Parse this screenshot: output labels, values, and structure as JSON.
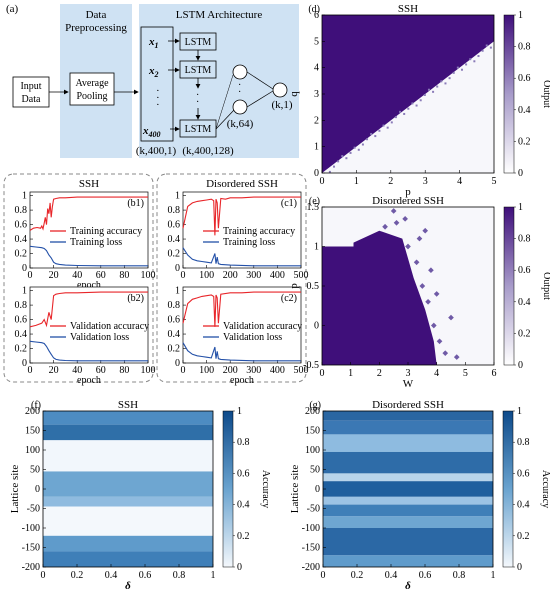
{
  "panel_a": {
    "tag": "(a)",
    "input_label": "Input Data",
    "input_line1": "Input",
    "input_line2": "Data",
    "prep_title_line1": "Data",
    "prep_title_line2": "Preprocessing",
    "pool_line1": "Average",
    "pool_line2": "Pooling",
    "lstm_title": "LSTM Architecture",
    "x_labels": [
      "x1",
      "x2",
      "x400"
    ],
    "lstm_label": "LSTM",
    "dim_in": "(k,400,1)",
    "dim_lstm": "(k,400,128)",
    "dim_64": "(k,64)",
    "dim_out": "(k,1)"
  },
  "colors": {
    "panel_bg": "#cfe2f3",
    "train_acc": "#e8262a",
    "train_loss": "#2451a8",
    "purple": "#3f0f7a",
    "blue": "#2f6fa8"
  },
  "chart_data": [
    {
      "id": "b1",
      "type": "line",
      "tag": "(b1)",
      "group_title": "SSH",
      "xlim": [
        0,
        100
      ],
      "ylim": [
        0,
        1.05
      ],
      "xticks": [
        0,
        20,
        40,
        60,
        80,
        100
      ],
      "yticks": [
        0,
        0.2,
        0.4,
        0.6,
        0.8,
        1
      ],
      "xlabel": "epoch",
      "series": [
        {
          "name": "Training accuracy",
          "color": "#e8262a",
          "x": [
            0,
            3,
            6,
            9,
            10,
            11,
            12,
            13,
            14,
            15,
            16,
            17,
            18,
            19,
            20,
            22,
            25,
            30,
            40,
            60,
            80,
            100
          ],
          "y": [
            0.52,
            0.55,
            0.56,
            0.55,
            0.58,
            0.54,
            0.62,
            0.7,
            0.6,
            0.82,
            0.75,
            0.9,
            0.7,
            0.85,
            0.95,
            0.96,
            0.97,
            0.97,
            0.98,
            0.98,
            0.98,
            0.98
          ]
        },
        {
          "name": "Training loss",
          "color": "#2451a8",
          "x": [
            0,
            5,
            10,
            12,
            14,
            16,
            18,
            20,
            22,
            25,
            30,
            40,
            60,
            80,
            100
          ],
          "y": [
            0.3,
            0.29,
            0.28,
            0.27,
            0.24,
            0.18,
            0.14,
            0.08,
            0.06,
            0.05,
            0.04,
            0.035,
            0.03,
            0.03,
            0.03
          ]
        }
      ]
    },
    {
      "id": "c1",
      "type": "line",
      "tag": "(c1)",
      "group_title": "Disordered SSH",
      "xlim": [
        0,
        500
      ],
      "ylim": [
        0,
        1.05
      ],
      "xticks": [
        0,
        100,
        200,
        300,
        400,
        500
      ],
      "yticks": [
        0,
        0.2,
        0.4,
        0.6,
        0.8,
        1
      ],
      "xlabel": "",
      "series": [
        {
          "name": "Training accuracy",
          "color": "#e8262a",
          "x": [
            0,
            20,
            40,
            60,
            80,
            100,
            120,
            130,
            135,
            140,
            145,
            150,
            160,
            180,
            200,
            250,
            300,
            350,
            400,
            450,
            500
          ],
          "y": [
            0.55,
            0.85,
            0.9,
            0.92,
            0.93,
            0.94,
            0.95,
            0.93,
            0.45,
            0.95,
            0.9,
            0.55,
            0.96,
            0.95,
            0.97,
            0.97,
            0.98,
            0.98,
            0.98,
            0.98,
            0.98
          ]
        },
        {
          "name": "Training loss",
          "color": "#2451a8",
          "x": [
            0,
            20,
            40,
            60,
            80,
            100,
            120,
            135,
            140,
            145,
            150,
            160,
            200,
            300,
            400,
            500
          ],
          "y": [
            0.28,
            0.18,
            0.12,
            0.1,
            0.09,
            0.08,
            0.07,
            0.2,
            0.06,
            0.15,
            0.06,
            0.05,
            0.04,
            0.03,
            0.03,
            0.03
          ]
        }
      ]
    },
    {
      "id": "b2",
      "type": "line",
      "tag": "(b2)",
      "xlim": [
        0,
        100
      ],
      "ylim": [
        0,
        1.05
      ],
      "xticks": [
        0,
        20,
        40,
        60,
        80,
        100
      ],
      "yticks": [
        0,
        0.2,
        0.4,
        0.6,
        0.8,
        1
      ],
      "xlabel": "epoch",
      "series": [
        {
          "name": "Validation accuracy",
          "color": "#e8262a",
          "x": [
            0,
            5,
            10,
            12,
            14,
            16,
            18,
            20,
            22,
            25,
            30,
            40,
            60,
            80,
            100
          ],
          "y": [
            0.5,
            0.52,
            0.55,
            0.6,
            0.52,
            0.7,
            0.6,
            0.93,
            0.95,
            0.96,
            0.97,
            0.97,
            0.98,
            0.98,
            0.98
          ]
        },
        {
          "name": "Validation loss",
          "color": "#2451a8",
          "x": [
            0,
            5,
            10,
            12,
            14,
            16,
            18,
            20,
            22,
            25,
            30,
            40,
            60,
            80,
            100
          ],
          "y": [
            0.3,
            0.29,
            0.28,
            0.27,
            0.23,
            0.17,
            0.12,
            0.07,
            0.05,
            0.04,
            0.035,
            0.03,
            0.03,
            0.03,
            0.03
          ]
        }
      ]
    },
    {
      "id": "c2",
      "type": "line",
      "tag": "(c2)",
      "xlim": [
        0,
        500
      ],
      "ylim": [
        0,
        1.05
      ],
      "xticks": [
        0,
        100,
        200,
        300,
        400,
        500
      ],
      "yticks": [
        0,
        0.2,
        0.4,
        0.6,
        0.8,
        1
      ],
      "xlabel": "epoch",
      "series": [
        {
          "name": "Validation accuracy",
          "color": "#e8262a",
          "x": [
            0,
            20,
            40,
            60,
            80,
            100,
            120,
            130,
            135,
            140,
            145,
            150,
            160,
            200,
            250,
            300,
            400,
            500
          ],
          "y": [
            0.55,
            0.82,
            0.88,
            0.9,
            0.92,
            0.93,
            0.94,
            0.92,
            0.5,
            0.94,
            0.9,
            0.55,
            0.95,
            0.97,
            0.97,
            0.98,
            0.98,
            0.98
          ]
        },
        {
          "name": "Validation loss",
          "color": "#2451a8",
          "x": [
            0,
            20,
            40,
            60,
            80,
            100,
            120,
            135,
            140,
            145,
            150,
            160,
            200,
            300,
            400,
            500
          ],
          "y": [
            0.28,
            0.17,
            0.12,
            0.1,
            0.09,
            0.08,
            0.07,
            0.22,
            0.06,
            0.16,
            0.06,
            0.05,
            0.04,
            0.03,
            0.03,
            0.03
          ]
        }
      ]
    },
    {
      "id": "d",
      "type": "heatmap",
      "tag": "(d)",
      "title": "SSH",
      "xlabel": "p",
      "ylabel": "q",
      "xlim": [
        0,
        5
      ],
      "ylim": [
        0,
        6
      ],
      "xticks": [
        0,
        1,
        2,
        3,
        4,
        5
      ],
      "yticks": [
        0,
        1,
        2,
        3,
        4,
        5,
        6
      ],
      "boundary": "q = p",
      "upper_region_output": 1,
      "lower_region_output": 0,
      "colorbar": {
        "label": "Output",
        "ticks": [
          0,
          0.2,
          0.4,
          0.6,
          0.8,
          1
        ]
      }
    },
    {
      "id": "e",
      "type": "heatmap",
      "tag": "(e)",
      "title": "Disordered SSH",
      "xlabel": "W",
      "ylabel": "p",
      "xlim": [
        0,
        6
      ],
      "ylim": [
        -0.5,
        1.5
      ],
      "xticks": [
        0,
        1,
        2,
        3,
        4,
        5,
        6
      ],
      "yticks": [
        -0.5,
        0,
        0.5,
        1,
        1.5
      ],
      "colorbar": {
        "label": "Output",
        "ticks": [
          0,
          0.2,
          0.4,
          0.6,
          0.8,
          1
        ]
      }
    },
    {
      "id": "f",
      "type": "heatmap",
      "tag": "(f)",
      "title": "SSH",
      "xlabel": "δ",
      "ylabel": "Lattice site",
      "xlim": [
        0,
        1
      ],
      "ylim": [
        -200,
        200
      ],
      "xticks": [
        0,
        0.2,
        0.4,
        0.6,
        0.8,
        1
      ],
      "xticklabels": [
        "0",
        "0.2",
        "0.4",
        "0.6",
        "0.8",
        "1"
      ],
      "yticks": [
        -200,
        -150,
        -100,
        -50,
        0,
        50,
        100,
        150,
        200
      ],
      "colorbar": {
        "label": "Accuracy",
        "ticks": [
          0,
          0.2,
          0.4,
          0.6,
          0.8,
          1
        ]
      }
    },
    {
      "id": "g",
      "type": "heatmap",
      "tag": "(g)",
      "title": "Disordered SSH",
      "xlabel": "δ",
      "ylabel": "Lattice site",
      "xlim": [
        0,
        1
      ],
      "ylim": [
        -200,
        200
      ],
      "xticks": [
        0,
        0.2,
        0.4,
        0.6,
        0.8,
        1
      ],
      "xticklabels": [
        "0",
        "0.2",
        "0.4",
        "0.6",
        "0.8",
        "1"
      ],
      "yticks": [
        -200,
        -150,
        -100,
        -50,
        0,
        50,
        100,
        150,
        200
      ],
      "colorbar": {
        "label": "Accuracy",
        "ticks": [
          0,
          0.2,
          0.4,
          0.6,
          0.8,
          1
        ]
      }
    }
  ]
}
